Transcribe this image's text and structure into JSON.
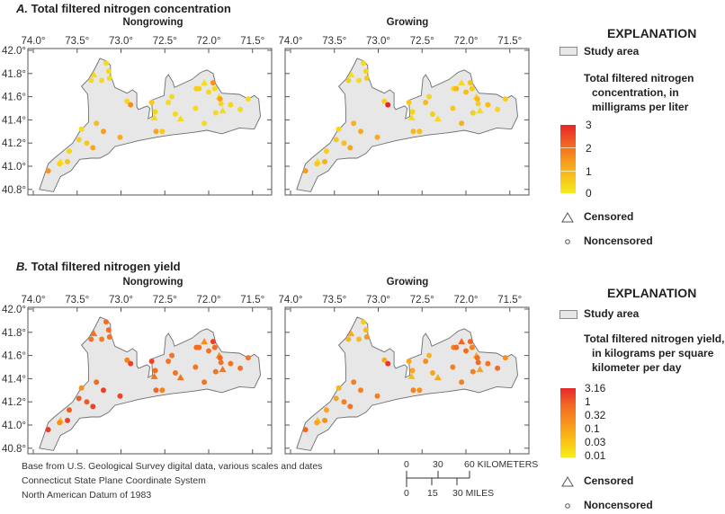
{
  "colors": {
    "study_area": "#e6e7e6",
    "outline": "#6d6e70",
    "low": "#f6ec1c",
    "mid": "#f7941d",
    "high": "#e8262a"
  },
  "axes": {
    "lon_ticks": [
      74.0,
      73.5,
      73.0,
      72.5,
      72.0,
      71.5
    ],
    "lon_labels": [
      "74.0°",
      "73.5°",
      "73.0°",
      "72.5°",
      "72.0°",
      "71.5°"
    ],
    "lat_ticks": [
      42.0,
      41.8,
      41.6,
      41.4,
      41.2,
      41.0,
      40.8
    ],
    "lat_labels": [
      "42.0°",
      "41.8°",
      "41.6°",
      "41.4°",
      "41.2°",
      "41.0°",
      "40.8°"
    ]
  },
  "stations": [
    {
      "lon": 73.17,
      "lat": 41.89,
      "censored": false
    },
    {
      "lon": 73.14,
      "lat": 41.82,
      "censored": false
    },
    {
      "lon": 73.31,
      "lat": 41.79,
      "censored": true
    },
    {
      "lon": 73.34,
      "lat": 41.74,
      "censored": false
    },
    {
      "lon": 73.22,
      "lat": 41.74,
      "censored": false
    },
    {
      "lon": 73.13,
      "lat": 41.76,
      "censored": false
    },
    {
      "lon": 72.93,
      "lat": 41.56,
      "censored": false
    },
    {
      "lon": 72.89,
      "lat": 41.53,
      "censored": false
    },
    {
      "lon": 72.65,
      "lat": 41.55,
      "censored": false
    },
    {
      "lon": 72.62,
      "lat": 41.42,
      "censored": true
    },
    {
      "lon": 72.61,
      "lat": 41.47,
      "censored": false
    },
    {
      "lon": 72.42,
      "lat": 41.6,
      "censored": false
    },
    {
      "lon": 72.46,
      "lat": 41.55,
      "censored": false
    },
    {
      "lon": 72.38,
      "lat": 41.45,
      "censored": false
    },
    {
      "lon": 72.32,
      "lat": 41.41,
      "censored": true
    },
    {
      "lon": 72.6,
      "lat": 41.3,
      "censored": false
    },
    {
      "lon": 72.53,
      "lat": 41.3,
      "censored": false
    },
    {
      "lon": 72.15,
      "lat": 41.5,
      "censored": false
    },
    {
      "lon": 72.14,
      "lat": 41.67,
      "censored": false
    },
    {
      "lon": 72.11,
      "lat": 41.67,
      "censored": false
    },
    {
      "lon": 72.05,
      "lat": 41.72,
      "censored": true
    },
    {
      "lon": 72.0,
      "lat": 41.64,
      "censored": false
    },
    {
      "lon": 71.95,
      "lat": 41.72,
      "censored": false
    },
    {
      "lon": 71.93,
      "lat": 41.67,
      "censored": false
    },
    {
      "lon": 71.88,
      "lat": 41.6,
      "censored": true
    },
    {
      "lon": 71.87,
      "lat": 41.58,
      "censored": false
    },
    {
      "lon": 71.86,
      "lat": 41.54,
      "censored": false
    },
    {
      "lon": 71.92,
      "lat": 41.46,
      "censored": false
    },
    {
      "lon": 71.84,
      "lat": 41.48,
      "censored": true
    },
    {
      "lon": 72.05,
      "lat": 41.37,
      "censored": false
    },
    {
      "lon": 71.75,
      "lat": 41.53,
      "censored": false
    },
    {
      "lon": 71.64,
      "lat": 41.49,
      "censored": false
    },
    {
      "lon": 71.55,
      "lat": 41.58,
      "censored": false
    },
    {
      "lon": 73.28,
      "lat": 41.37,
      "censored": false
    },
    {
      "lon": 73.45,
      "lat": 41.32,
      "censored": false
    },
    {
      "lon": 73.2,
      "lat": 41.3,
      "censored": false
    },
    {
      "lon": 73.01,
      "lat": 41.25,
      "censored": false
    },
    {
      "lon": 73.48,
      "lat": 41.23,
      "censored": false
    },
    {
      "lon": 73.39,
      "lat": 41.2,
      "censored": false
    },
    {
      "lon": 73.32,
      "lat": 41.16,
      "censored": false
    },
    {
      "lon": 73.59,
      "lat": 41.13,
      "censored": false
    },
    {
      "lon": 73.69,
      "lat": 41.04,
      "censored": true
    },
    {
      "lon": 73.7,
      "lat": 41.02,
      "censored": false
    },
    {
      "lon": 73.61,
      "lat": 41.04,
      "censored": false
    },
    {
      "lon": 73.83,
      "lat": 40.96,
      "censored": false
    }
  ],
  "panels": [
    {
      "title_letter": "A.",
      "title": "Total filtered nitrogen concentration",
      "maps": [
        {
          "label": "Nongrowing",
          "values": [
            0.3,
            0.3,
            0.3,
            0.3,
            0.3,
            0.3,
            0.4,
            1.6,
            0.6,
            0.3,
            0.4,
            0.3,
            0.3,
            0.3,
            0.3,
            1.2,
            0.6,
            0.3,
            0.5,
            0.5,
            0.3,
            0.3,
            1.5,
            0.3,
            0.3,
            1.3,
            0.4,
            0.3,
            0.3,
            0.3,
            0.4,
            0.3,
            0.3,
            0.8,
            0.3,
            1.3,
            1.1,
            0.5,
            0.6,
            1.2,
            0.4,
            0.2,
            0.4,
            0.7,
            1.5
          ]
        },
        {
          "label": "Growing",
          "values": [
            0.3,
            0.4,
            0.2,
            0.5,
            0.3,
            0.6,
            0.5,
            3.0,
            0.6,
            0.3,
            0.4,
            0.4,
            0.9,
            0.5,
            0.3,
            0.9,
            0.8,
            0.6,
            0.4,
            0.9,
            0.3,
            0.8,
            0.7,
            0.6,
            0.3,
            0.9,
            0.5,
            0.5,
            0.3,
            1.0,
            0.8,
            0.4,
            0.5,
            1.0,
            0.4,
            1.1,
            1.1,
            0.6,
            0.8,
            1.2,
            0.5,
            0.3,
            0.6,
            1.0,
            1.4
          ]
        }
      ],
      "scale": "linear",
      "legend": {
        "heading": "EXPLANATION",
        "study_area": "Study area",
        "title_lines": [
          "Total filtered nitrogen",
          "concentration, in",
          "milligrams per liter"
        ],
        "breaks": [
          "3",
          "2",
          "1",
          "0"
        ],
        "range": [
          0,
          3
        ],
        "censored": "Censored",
        "noncensored": "Noncensored"
      }
    },
    {
      "title_letter": "B.",
      "title": "Total filtered nitrogen yield",
      "maps": [
        {
          "label": "Nongrowing",
          "values": [
            0.5,
            0.5,
            0.4,
            0.4,
            0.3,
            0.4,
            0.3,
            1.6,
            1.5,
            0.4,
            0.5,
            0.4,
            0.4,
            0.4,
            0.4,
            0.6,
            0.3,
            0.4,
            0.5,
            0.5,
            0.2,
            0.4,
            1.6,
            0.5,
            0.2,
            0.6,
            0.4,
            0.4,
            0.4,
            0.4,
            0.4,
            0.4,
            0.4,
            0.5,
            0.2,
            1.6,
            1.5,
            0.8,
            0.8,
            1.6,
            0.8,
            0.05,
            0.2,
            1.5,
            1.8
          ]
        },
        {
          "label": "Growing",
          "values": [
            0.03,
            0.05,
            0.08,
            0.06,
            0.05,
            0.15,
            0.08,
            2.0,
            0.1,
            0.05,
            0.1,
            0.06,
            0.2,
            0.1,
            0.08,
            0.3,
            0.2,
            0.3,
            0.3,
            0.5,
            0.6,
            0.5,
            0.6,
            0.3,
            0.08,
            0.5,
            0.5,
            0.3,
            0.1,
            0.3,
            0.4,
            0.5,
            0.2,
            0.3,
            0.06,
            0.3,
            0.3,
            0.1,
            0.3,
            0.4,
            0.1,
            0.05,
            0.1,
            0.2,
            0.6
          ]
        }
      ],
      "scale": "log",
      "legend": {
        "heading": "EXPLANATION",
        "study_area": "Study area",
        "title_lines": [
          "Total filtered nitrogen yield,",
          "in kilograms per square",
          "kilometer per day"
        ],
        "breaks": [
          "3.16",
          "1",
          "0.32",
          "0.1",
          "0.03",
          "0.01"
        ],
        "range": [
          0.01,
          3.16
        ],
        "censored": "Censored",
        "noncensored": "Noncensored"
      }
    }
  ],
  "footer": {
    "source_lines": [
      "Base from U.S. Geological Survey digital data, various scales and dates",
      "Connecticut State Plane Coordinate System",
      "North American Datum of 1983"
    ],
    "scale_km": {
      "labels": [
        "0",
        "30",
        "60 KILOMETERS"
      ]
    },
    "scale_mi": {
      "labels": [
        "0",
        "15",
        "30 MILES"
      ]
    }
  }
}
